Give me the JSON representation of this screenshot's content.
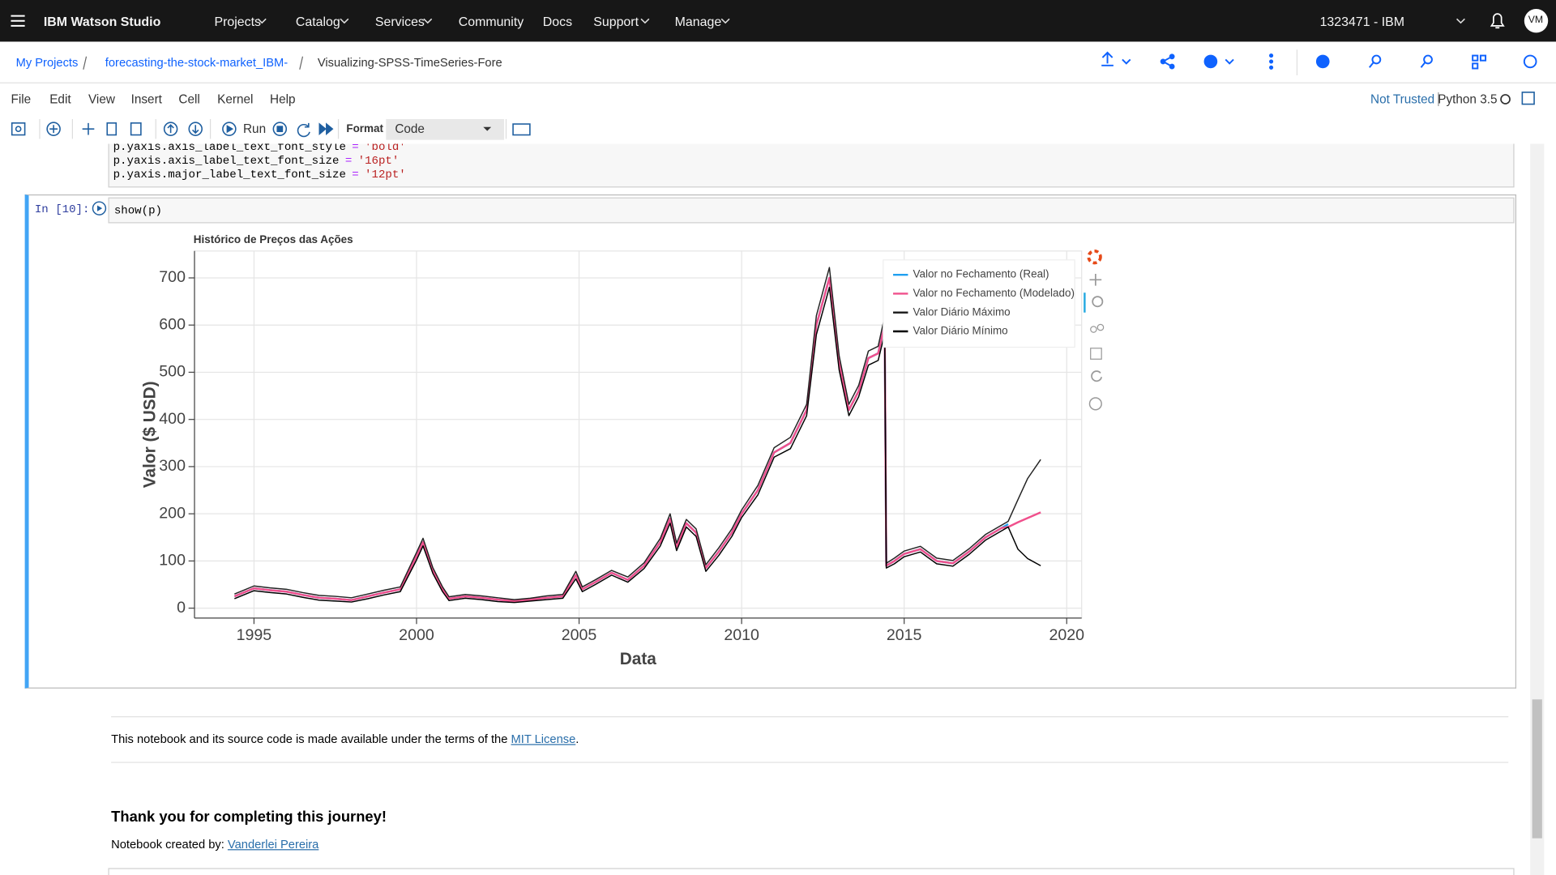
{
  "navbar": {
    "brand": "IBM Watson Studio",
    "menu": [
      "Projects",
      "Catalog",
      "Services",
      "Community",
      "Docs",
      "Support",
      "Manage"
    ],
    "account": "1323471 - IBM",
    "avatar": "VM"
  },
  "breadcrumbs": [
    "My Projects",
    "forecasting-the-stock-market_IBM-",
    "Visualizing-SPSS-TimeSeries-Foreca"
  ],
  "menubar": {
    "items": [
      "File",
      "Edit",
      "View",
      "Insert",
      "Cell",
      "Kernel",
      "Help"
    ],
    "trust": "Not Trusted",
    "kernel": "Python 3.5"
  },
  "toolbar": {
    "run": "Run",
    "format_label": "Format",
    "cell_type": "Code"
  },
  "cells": {
    "prev_code": [
      [
        "p.yaxis.axis_label_text_font_style",
        "=",
        "'bold'"
      ],
      [
        "p.yaxis.axis_label_text_font_size",
        "=",
        "'16pt'"
      ],
      [
        "p.yaxis.major_label_text_font_size",
        "=",
        "'12pt'"
      ]
    ],
    "prompt": "In [10]:",
    "code": "show(p)"
  },
  "chart_data": {
    "type": "line",
    "title": "Histórico de Preços das Ações",
    "x_label": "Data",
    "y_label": "Valor ($ USD)",
    "x": [
      1994.4,
      1995.0,
      1995.5,
      1996.0,
      1996.5,
      1997.0,
      1997.5,
      1998.0,
      1998.5,
      1999.0,
      1999.5,
      2000.0,
      2000.2,
      2000.5,
      2000.8,
      2001.0,
      2001.5,
      2002.0,
      2002.5,
      2003.0,
      2003.5,
      2004.0,
      2004.5,
      2004.9,
      2005.1,
      2005.5,
      2006.0,
      2006.5,
      2007.0,
      2007.5,
      2007.8,
      2008.0,
      2008.3,
      2008.6,
      2008.9,
      2009.3,
      2009.7,
      2010.0,
      2010.5,
      2011.0,
      2011.5,
      2012.0,
      2012.3,
      2012.7,
      2013.0,
      2013.3,
      2013.6,
      2013.9,
      2014.2,
      2014.4,
      2014.45,
      2014.7,
      2015.0,
      2015.5,
      2016.0,
      2016.5,
      2017.0,
      2017.5,
      2018.0,
      2018.2,
      2018.5,
      2018.8,
      2019.2
    ],
    "series": [
      {
        "name": "Valor no Fechamento (Real)",
        "color": "#1f9ff0",
        "values": [
          25,
          42,
          38,
          35,
          28,
          22,
          20,
          17,
          25,
          33,
          40,
          110,
          140,
          80,
          40,
          20,
          25,
          22,
          18,
          15,
          18,
          22,
          25,
          70,
          40,
          55,
          75,
          60,
          90,
          140,
          190,
          130,
          180,
          160,
          85,
          120,
          160,
          200,
          250,
          330,
          350,
          420,
          600,
          700,
          520,
          420,
          460,
          530,
          540,
          600,
          90,
          100,
          115,
          125,
          100,
          95,
          120,
          150,
          170,
          178,
          null,
          null,
          null
        ]
      },
      {
        "name": "Valor no Fechamento (Modelado)",
        "color": "#f0508c",
        "values": [
          25,
          42,
          38,
          35,
          28,
          22,
          20,
          17,
          25,
          33,
          40,
          110,
          140,
          80,
          40,
          20,
          25,
          22,
          18,
          15,
          18,
          22,
          25,
          70,
          40,
          55,
          75,
          60,
          90,
          140,
          190,
          130,
          180,
          160,
          85,
          120,
          160,
          200,
          250,
          330,
          350,
          420,
          600,
          700,
          520,
          420,
          460,
          530,
          540,
          600,
          90,
          100,
          115,
          125,
          100,
          95,
          120,
          150,
          170,
          172,
          182,
          191,
          203
        ]
      },
      {
        "name": "Valor Diário Máximo",
        "color": "#222222",
        "values": [
          30,
          47,
          43,
          40,
          33,
          27,
          25,
          22,
          30,
          38,
          45,
          118,
          148,
          86,
          45,
          24,
          29,
          26,
          22,
          18,
          21,
          26,
          29,
          78,
          45,
          60,
          80,
          66,
          96,
          148,
          200,
          138,
          188,
          168,
          92,
          128,
          168,
          208,
          260,
          340,
          362,
          432,
          620,
          722,
          535,
          432,
          472,
          545,
          555,
          618,
          95,
          106,
          121,
          131,
          106,
          101,
          126,
          156,
          176,
          184,
          230,
          275,
          315
        ]
      },
      {
        "name": "Valor Diário Mínimo",
        "color": "#000000",
        "values": [
          20,
          37,
          33,
          30,
          23,
          17,
          15,
          13,
          20,
          28,
          35,
          102,
          132,
          74,
          35,
          16,
          21,
          18,
          14,
          12,
          15,
          18,
          21,
          62,
          35,
          50,
          70,
          55,
          84,
          132,
          180,
          122,
          172,
          152,
          78,
          112,
          152,
          192,
          240,
          320,
          338,
          408,
          580,
          680,
          505,
          408,
          448,
          515,
          525,
          582,
          85,
          94,
          109,
          119,
          94,
          89,
          114,
          144,
          164,
          172,
          125,
          105,
          90
        ]
      }
    ],
    "xlim": [
      1993.17,
      2020.46
    ],
    "xticks": [
      1995,
      2000,
      2005,
      2010,
      2015,
      2020
    ],
    "ylim": [
      -21,
      757
    ],
    "yticks": [
      0,
      100,
      200,
      300,
      400,
      500,
      600,
      700
    ],
    "grid": true,
    "legend": "top-right"
  },
  "footer": {
    "license_text": "This notebook and its source code is made available under the terms of the ",
    "license_link": "MIT License",
    "license_end": ".",
    "thanks": "Thank you for completing this journey!",
    "credit": "Notebook created by: ",
    "author": "Vanderlei Pereira"
  }
}
